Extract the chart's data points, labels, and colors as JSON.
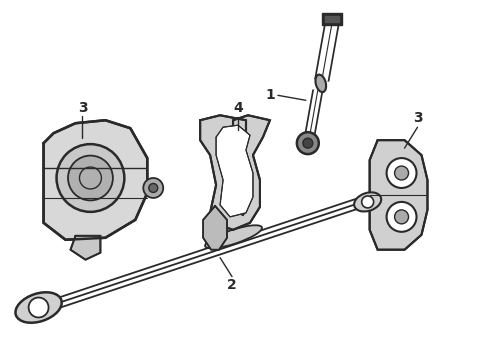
{
  "bg_color": "#ffffff",
  "line_color": "#2a2a2a",
  "fig_width": 4.9,
  "fig_height": 3.6,
  "dpi": 100
}
